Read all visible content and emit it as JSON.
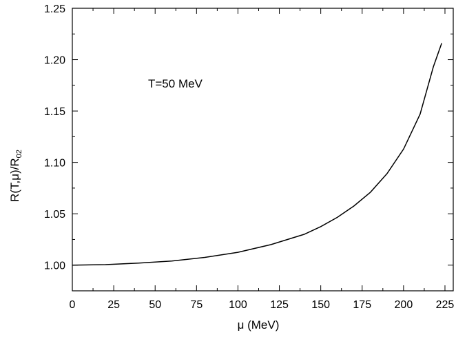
{
  "chart_data": {
    "type": "line",
    "xlabel": "μ (MeV)",
    "ylabel": {
      "main": "R(T,μ)/R",
      "sub": "02"
    },
    "annotation": "T=50 MeV",
    "xlim": [
      0,
      230
    ],
    "ylim": [
      0.975,
      1.25
    ],
    "xticks": [
      0,
      25,
      50,
      75,
      100,
      125,
      150,
      175,
      200,
      225
    ],
    "xtick_labels": [
      "0",
      "25",
      "50",
      "75",
      "100",
      "125",
      "150",
      "175",
      "200",
      "225"
    ],
    "yticks": [
      1.0,
      1.05,
      1.1,
      1.15,
      1.2,
      1.25
    ],
    "ytick_labels": [
      "1.00",
      "1.05",
      "1.10",
      "1.15",
      "1.20",
      "1.25"
    ],
    "grid": false,
    "legend": "none",
    "series": [
      {
        "color": "#000000",
        "x": [
          0,
          20,
          40,
          60,
          80,
          100,
          120,
          140,
          150,
          160,
          170,
          180,
          190,
          200,
          210,
          218,
          223
        ],
        "y": [
          1.0,
          1.0005,
          1.002,
          1.004,
          1.0075,
          1.0125,
          1.02,
          1.03,
          1.0375,
          1.0465,
          1.0575,
          1.071,
          1.089,
          1.113,
          1.147,
          1.193,
          1.216
        ]
      }
    ]
  }
}
